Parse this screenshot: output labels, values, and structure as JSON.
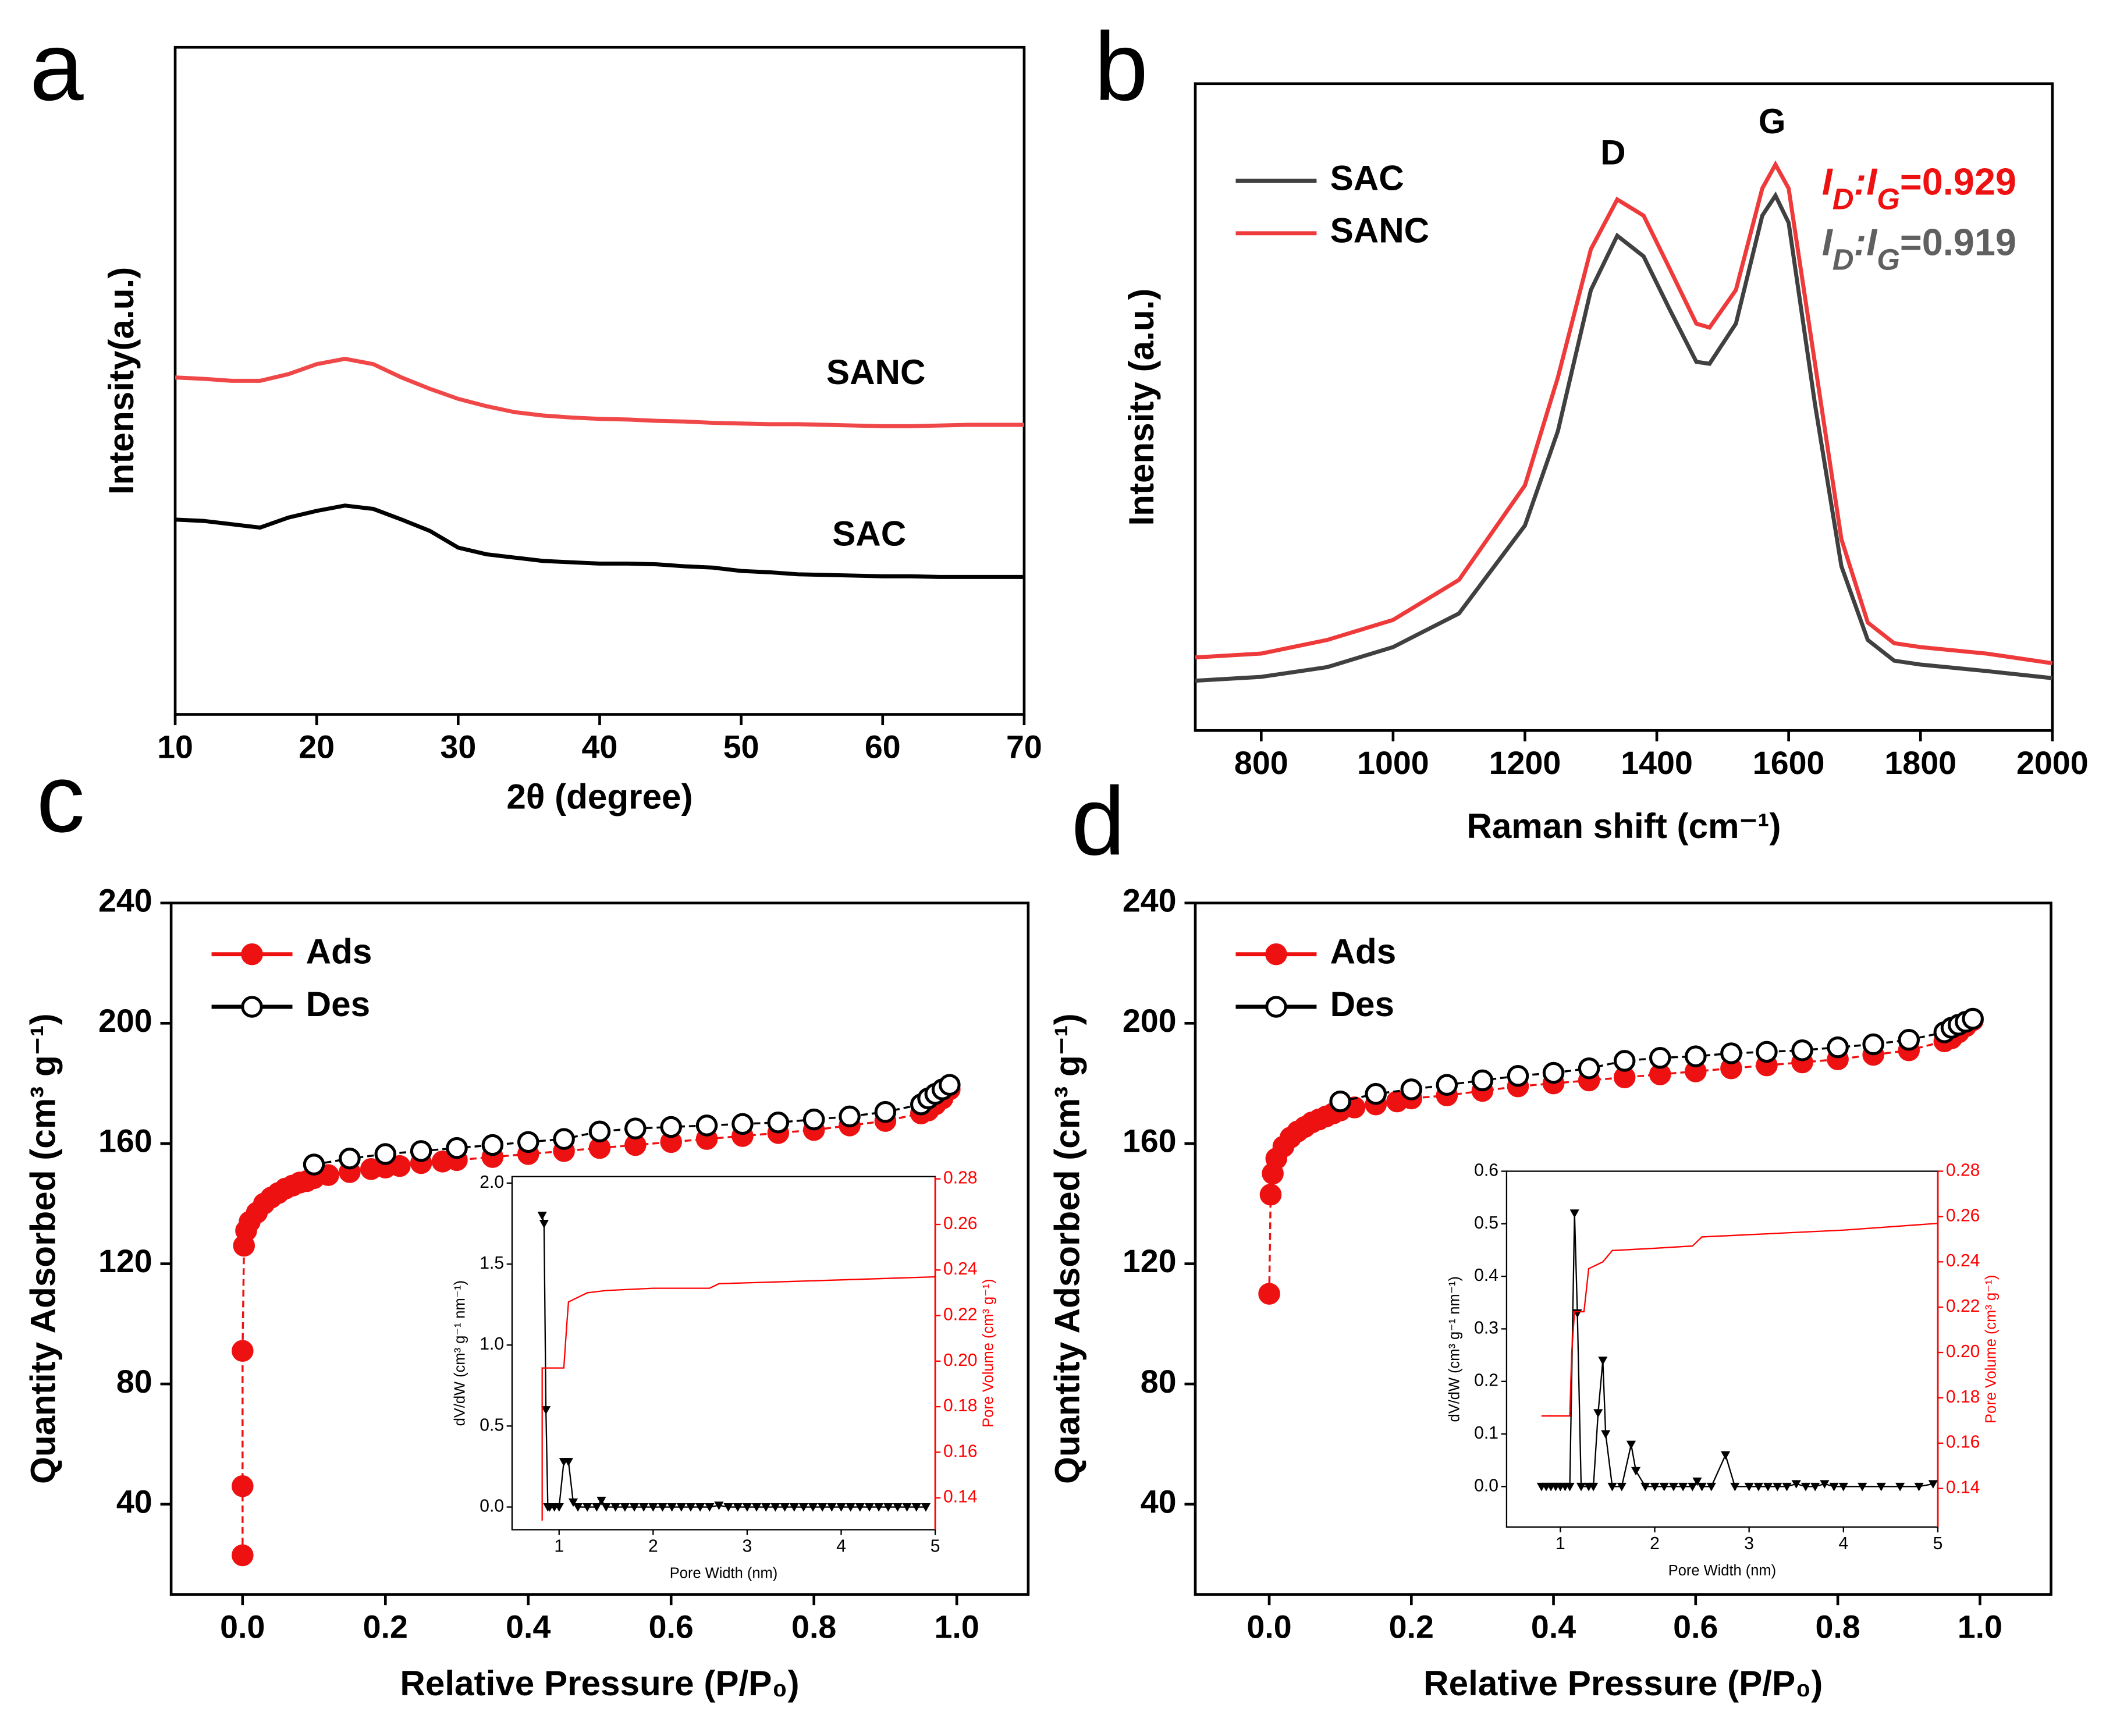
{
  "chart_data": [
    {
      "type": "line",
      "panel_label": "a",
      "xlabel": "2θ (degree)",
      "ylabel": "Intensity(a.u.)",
      "xlim": [
        10,
        70
      ],
      "xticks": [
        10,
        20,
        30,
        40,
        50,
        60,
        70
      ],
      "ylim": [
        0,
        100
      ],
      "legend": "inline",
      "x": [
        10,
        12,
        14,
        16,
        18,
        20,
        22,
        24,
        26,
        28,
        30,
        32,
        34,
        36,
        38,
        40,
        42,
        44,
        46,
        48,
        50,
        52,
        54,
        56,
        58,
        60,
        62,
        64,
        66,
        68,
        70
      ],
      "series": [
        {
          "name": "SANC",
          "color": "#f04848",
          "values": [
            50.5,
            50.3,
            50.0,
            50.0,
            51.0,
            52.5,
            53.3,
            52.5,
            50.5,
            48.8,
            47.3,
            46.2,
            45.3,
            44.8,
            44.5,
            44.3,
            44.2,
            44.0,
            43.9,
            43.7,
            43.6,
            43.5,
            43.5,
            43.4,
            43.3,
            43.2,
            43.2,
            43.3,
            43.4,
            43.4,
            43.4
          ]
        },
        {
          "name": "SAC",
          "color": "#000000",
          "values": [
            29.2,
            29.0,
            28.5,
            28.0,
            29.5,
            30.5,
            31.3,
            30.8,
            29.2,
            27.5,
            25.0,
            24.0,
            23.5,
            23.0,
            22.8,
            22.6,
            22.6,
            22.5,
            22.2,
            22.0,
            21.5,
            21.3,
            21.0,
            20.9,
            20.8,
            20.7,
            20.7,
            20.6,
            20.6,
            20.6,
            20.6
          ]
        }
      ]
    },
    {
      "type": "line",
      "panel_label": "b",
      "xlabel": "Raman shift (cm⁻¹)",
      "ylabel": "Intensity (a.u.)",
      "xlim": [
        700,
        2000
      ],
      "xticks": [
        800,
        1000,
        1200,
        1400,
        1600,
        1800,
        2000
      ],
      "ylim": [
        0,
        100
      ],
      "legend": "upper left",
      "annotations": [
        "D",
        "G"
      ],
      "ratio_labels": [
        {
          "parts": [
            "I",
            "D",
            ":",
            "I",
            "G",
            "=0.929"
          ],
          "color": "#ee1111"
        },
        {
          "parts": [
            "I",
            "D",
            ":",
            "I",
            "G",
            "=0.919"
          ],
          "color": "#606060"
        }
      ],
      "x": [
        700,
        800,
        900,
        1000,
        1100,
        1200,
        1250,
        1300,
        1340,
        1380,
        1420,
        1460,
        1480,
        1520,
        1560,
        1580,
        1600,
        1640,
        1680,
        1720,
        1760,
        1800,
        1900,
        2000
      ],
      "series": [
        {
          "name": "SAC",
          "color": "#404040",
          "values": [
            7.7,
            8.3,
            9.8,
            12.9,
            18.1,
            31.7,
            46.3,
            68.1,
            76.5,
            73.3,
            65.0,
            57.0,
            56.7,
            62.9,
            79.6,
            82.7,
            78.5,
            50.4,
            25.4,
            14.0,
            10.8,
            10.2,
            9.2,
            8.1
          ]
        },
        {
          "name": "SANC",
          "color": "#ee3a3a",
          "values": [
            11.3,
            11.9,
            14.0,
            17.1,
            23.3,
            37.9,
            54.6,
            74.4,
            82.1,
            79.6,
            71.3,
            62.9,
            62.3,
            68.1,
            83.8,
            87.5,
            83.8,
            56.7,
            29.6,
            16.7,
            13.5,
            12.9,
            11.9,
            10.4
          ]
        }
      ]
    },
    {
      "type": "line",
      "panel_label": "c",
      "xlabel": "Relative Pressure (P/P₀)",
      "ylabel": "Quantity Adsorbed (cm³ g⁻¹)",
      "xlim": [
        -0.1,
        1.1
      ],
      "xticks": [
        {
          "value": 0,
          "label": "0.0"
        },
        0.2,
        0.4,
        0.6,
        0.8,
        {
          "value": 1,
          "label": "1.0"
        }
      ],
      "ylim": [
        10,
        240
      ],
      "yticks": [
        40,
        80,
        120,
        160,
        200,
        240
      ],
      "legend": "upper left",
      "series": [
        {
          "name": "Ads",
          "color": "#ee1111",
          "marker": "circle-filled",
          "line_style": "dashed",
          "x": [
            0,
            0,
            0,
            0.002,
            0.005,
            0.01,
            0.02,
            0.03,
            0.04,
            0.05,
            0.06,
            0.07,
            0.08,
            0.09,
            0.1,
            0.12,
            0.15,
            0.18,
            0.2,
            0.22,
            0.25,
            0.28,
            0.3,
            0.35,
            0.4,
            0.45,
            0.5,
            0.55,
            0.6,
            0.65,
            0.7,
            0.75,
            0.8,
            0.85,
            0.9,
            0.95,
            0.96,
            0.97,
            0.98,
            0.99
          ],
          "values": [
            23,
            46,
            91,
            126,
            131,
            134,
            137,
            140,
            142,
            143.5,
            145,
            146,
            147,
            147.5,
            148.5,
            149.5,
            150.5,
            151.5,
            152,
            152.5,
            153.5,
            154,
            154.5,
            155.5,
            156.5,
            157.5,
            158.5,
            159.5,
            160.5,
            161.5,
            162.5,
            163.5,
            164.5,
            166,
            167.5,
            170,
            171,
            173,
            175,
            178
          ]
        },
        {
          "name": "Des",
          "color": "#000000",
          "marker": "circle-open",
          "line_style": "dashed",
          "x": [
            0.1,
            0.15,
            0.2,
            0.25,
            0.3,
            0.35,
            0.4,
            0.45,
            0.5,
            0.55,
            0.6,
            0.65,
            0.7,
            0.75,
            0.8,
            0.85,
            0.9,
            0.95,
            0.96,
            0.97,
            0.98,
            0.99
          ],
          "values": [
            153,
            155,
            156.5,
            157.5,
            158.5,
            159.5,
            160.5,
            161.5,
            164,
            165,
            165.5,
            166,
            166.5,
            167,
            168,
            169,
            170.5,
            173,
            175,
            176.5,
            178,
            179.5
          ]
        }
      ]
    },
    {
      "type": "line",
      "panel_label": "d",
      "xlabel": "Relative Pressure (P/P₀)",
      "ylabel": "Quantity Adsorbed (cm³ g⁻¹)",
      "xlim": [
        -0.104,
        1.1
      ],
      "xticks": [
        {
          "value": 0,
          "label": "0.0"
        },
        0.2,
        0.4,
        0.6,
        0.8,
        {
          "value": 1,
          "label": "1.0"
        }
      ],
      "ylim": [
        10,
        240
      ],
      "yticks": [
        40,
        80,
        120,
        160,
        200,
        240
      ],
      "legend": "upper left",
      "series": [
        {
          "name": "Ads",
          "color": "#ee1111",
          "marker": "circle-filled",
          "line_style": "dashed",
          "x": [
            0,
            0.002,
            0.005,
            0.01,
            0.02,
            0.03,
            0.04,
            0.05,
            0.06,
            0.07,
            0.08,
            0.09,
            0.1,
            0.12,
            0.15,
            0.18,
            0.2,
            0.25,
            0.3,
            0.35,
            0.4,
            0.45,
            0.5,
            0.55,
            0.6,
            0.65,
            0.7,
            0.75,
            0.8,
            0.85,
            0.9,
            0.95,
            0.96,
            0.97,
            0.98,
            0.99
          ],
          "values": [
            110,
            143,
            150,
            155,
            159,
            162,
            164,
            165.5,
            167,
            168,
            169,
            170,
            171,
            172,
            173,
            174,
            175,
            176,
            177.5,
            179,
            180,
            181,
            182,
            183,
            184,
            185,
            186,
            187,
            188,
            189.5,
            191,
            194,
            195,
            197,
            199,
            201
          ]
        },
        {
          "name": "Des",
          "color": "#000000",
          "marker": "circle-open",
          "line_style": "dashed",
          "x": [
            0.1,
            0.15,
            0.2,
            0.25,
            0.3,
            0.35,
            0.4,
            0.45,
            0.5,
            0.55,
            0.6,
            0.65,
            0.7,
            0.75,
            0.8,
            0.85,
            0.9,
            0.95,
            0.96,
            0.97,
            0.98,
            0.99
          ],
          "values": [
            174,
            176.5,
            178,
            179.5,
            181,
            182.5,
            183.5,
            185,
            187.5,
            188.5,
            189,
            190,
            190.5,
            191,
            192,
            193,
            194.5,
            197,
            198.5,
            199.5,
            200.5,
            201.5
          ]
        }
      ]
    },
    {
      "type": "line",
      "xlabel": "Pore Width (nm)",
      "ylabel": "dV/dW (cm³ g⁻¹ nm⁻¹)",
      "y2label": "Pore Volume (cm³ g⁻¹)",
      "xlim": [
        0.5,
        5.0
      ],
      "xticks": [
        1,
        2,
        3,
        4,
        5
      ],
      "ylim": [
        -0.14,
        2.04
      ],
      "yticks": [
        {
          "value": 0,
          "label": "0.0"
        },
        0.5,
        {
          "value": 1,
          "label": "1.0"
        },
        1.5,
        {
          "value": 2,
          "label": "2.0"
        }
      ],
      "y2lim": [
        0.126,
        0.281
      ],
      "y2ticks": [
        0.14,
        0.16,
        0.18,
        {
          "value": 0.2,
          "label": "0.20"
        },
        0.22,
        0.24,
        0.26,
        0.28
      ],
      "series": [
        {
          "color": "#000000",
          "marker": "triangle-down",
          "x": [
            0.82,
            0.84,
            0.86,
            0.88,
            0.9,
            0.95,
            1.0,
            1.05,
            1.1,
            1.15,
            1.2,
            1.3,
            1.4,
            1.45,
            1.5,
            1.6,
            1.7,
            1.8,
            1.9,
            2.0,
            2.1,
            2.2,
            2.3,
            2.4,
            2.5,
            2.6,
            2.7,
            2.8,
            2.9,
            3.0,
            3.1,
            3.2,
            3.3,
            3.4,
            3.5,
            3.6,
            3.7,
            3.8,
            3.9,
            4.0,
            4.1,
            4.2,
            4.3,
            4.4,
            4.5,
            4.6,
            4.7,
            4.8,
            4.9
          ],
          "values": [
            1.8,
            1.75,
            0.6,
            0,
            0,
            0,
            0,
            0.28,
            0.28,
            0.03,
            0,
            0,
            0,
            0.04,
            0,
            0,
            0,
            0,
            0,
            0,
            0,
            0,
            0,
            0,
            0,
            0,
            0.01,
            0,
            0,
            0,
            0,
            0,
            0,
            0,
            0,
            0,
            0,
            0,
            0,
            0,
            0,
            0,
            0,
            0,
            0,
            0,
            0,
            0,
            0
          ]
        },
        {
          "color": "#ff0000",
          "axis": "y2",
          "x": [
            0.82,
            0.82,
            0.84,
            1.05,
            1.08,
            1.1,
            1.2,
            1.3,
            1.5,
            2.0,
            2.6,
            2.7,
            3.5,
            5.0
          ],
          "values": [
            0.13,
            0.197,
            0.197,
            0.197,
            0.215,
            0.226,
            0.228,
            0.23,
            0.231,
            0.232,
            0.232,
            0.234,
            0.235,
            0.237
          ]
        }
      ]
    },
    {
      "type": "line",
      "xlabel": "Pore Width (nm)",
      "ylabel": "dV/dW (cm³ g⁻¹ nm⁻¹)",
      "y2label": "Pore Volume (cm³ g⁻¹)",
      "xlim": [
        0.43,
        5.0
      ],
      "xticks": [
        1,
        2,
        3,
        4,
        5
      ],
      "ylim": [
        -0.077,
        0.6
      ],
      "yticks": [
        {
          "value": 0,
          "label": "0.0"
        },
        0.1,
        0.2,
        0.3,
        0.4,
        0.5,
        0.6
      ],
      "y2lim": [
        0.123,
        0.28
      ],
      "y2ticks": [
        0.14,
        0.16,
        0.18,
        {
          "value": 0.2,
          "label": "0.20"
        },
        0.22,
        0.24,
        0.26,
        0.28
      ],
      "series": [
        {
          "color": "#000000",
          "marker": "triangle-down",
          "x": [
            0.8,
            0.85,
            0.9,
            0.95,
            1.0,
            1.05,
            1.1,
            1.15,
            1.18,
            1.22,
            1.3,
            1.35,
            1.4,
            1.45,
            1.48,
            1.55,
            1.65,
            1.75,
            1.8,
            1.9,
            2.0,
            2.1,
            2.2,
            2.3,
            2.4,
            2.45,
            2.5,
            2.6,
            2.75,
            2.85,
            3.0,
            3.1,
            3.2,
            3.3,
            3.4,
            3.5,
            3.6,
            3.7,
            3.8,
            3.9,
            4.0,
            4.2,
            4.4,
            4.6,
            4.8,
            4.95
          ],
          "values": [
            0,
            0,
            0,
            0,
            0,
            0,
            0,
            0.52,
            0.33,
            0,
            0,
            0,
            0.14,
            0.24,
            0.1,
            0,
            0,
            0.08,
            0.03,
            0,
            0,
            0,
            0,
            0,
            0,
            0.01,
            0,
            0,
            0.06,
            0,
            0,
            0,
            0,
            0,
            0,
            0.005,
            0,
            0,
            0.005,
            0,
            0,
            0,
            0,
            0,
            0,
            0.005
          ]
        },
        {
          "color": "#ff0000",
          "axis": "y2",
          "x": [
            0.8,
            1.1,
            1.12,
            1.15,
            1.25,
            1.3,
            1.45,
            1.55,
            2.0,
            2.4,
            2.5,
            3.0,
            4.0,
            5.0
          ],
          "values": [
            0.172,
            0.172,
            0.2,
            0.218,
            0.218,
            0.237,
            0.24,
            0.245,
            0.246,
            0.247,
            0.251,
            0.252,
            0.254,
            0.257
          ]
        }
      ]
    }
  ]
}
